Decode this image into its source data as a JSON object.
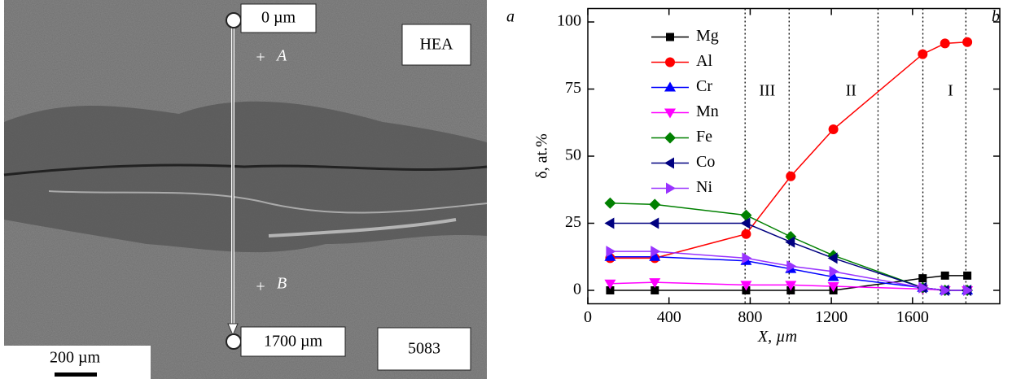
{
  "micrograph": {
    "top_label": "0 µm",
    "bottom_label": "1700 µm",
    "top_material": "HEA",
    "bottom_material": "5083",
    "point_a": "A",
    "point_b": "B",
    "scale_bar": "200 µm",
    "panel": "a"
  },
  "chart_data": {
    "type": "line",
    "panel": "b",
    "xlabel": "X, µm",
    "ylabel": "δ, at.%",
    "x": [
      110,
      330,
      780,
      1000,
      1210,
      1650,
      1760,
      1870
    ],
    "xlim": [
      0,
      2030
    ],
    "xticks": [
      0,
      400,
      800,
      1200,
      1600
    ],
    "ylim": [
      -5,
      105
    ],
    "yticks": [
      0,
      25,
      50,
      75,
      100
    ],
    "boundaries": [
      775,
      992,
      1430,
      1651,
      1863
    ],
    "annotations": [
      {
        "text": "III",
        "x": 884,
        "y": 74
      },
      {
        "text": "II",
        "x": 1297,
        "y": 74
      },
      {
        "text": "I",
        "x": 1787,
        "y": 74
      }
    ],
    "legend": "upper left",
    "series": [
      {
        "name": "Mg",
        "color": "#000000",
        "marker": "square",
        "values": [
          0,
          0,
          0,
          0,
          0,
          4.5,
          5.5,
          5.5
        ]
      },
      {
        "name": "Al",
        "color": "#ff0000",
        "marker": "circle",
        "values": [
          12,
          12,
          21,
          42.5,
          60,
          88,
          92,
          92.5
        ]
      },
      {
        "name": "Cr",
        "color": "#0000ff",
        "marker": "triangle-up",
        "values": [
          12.5,
          12.5,
          11,
          8,
          5,
          1,
          0,
          0
        ]
      },
      {
        "name": "Mn",
        "color": "#ff00ff",
        "marker": "triangle-down",
        "values": [
          2.5,
          3,
          2,
          2,
          1.5,
          0.5,
          0,
          0
        ]
      },
      {
        "name": "Fe",
        "color": "#008000",
        "marker": "diamond",
        "values": [
          32.5,
          32,
          28,
          20,
          13,
          1,
          0,
          0
        ]
      },
      {
        "name": "Co",
        "color": "#000080",
        "marker": "triangle-left",
        "values": [
          25,
          25,
          25,
          18,
          12,
          1,
          0,
          0
        ]
      },
      {
        "name": "Ni",
        "color": "#9933ff",
        "marker": "triangle-right",
        "values": [
          14.5,
          14.5,
          12,
          9,
          7,
          1,
          0,
          0
        ]
      }
    ]
  }
}
